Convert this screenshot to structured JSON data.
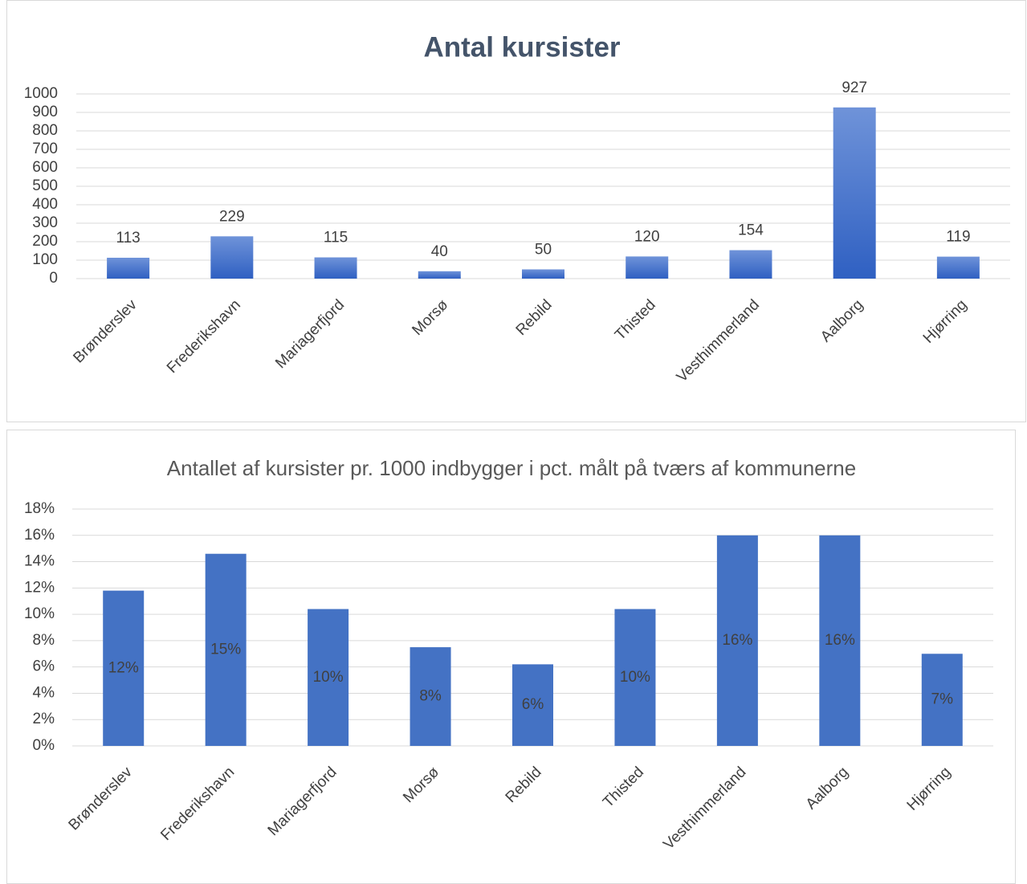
{
  "chart_data": [
    {
      "type": "bar",
      "title": "Antal kursister",
      "categories": [
        "Brønderslev",
        "Frederikshavn",
        "Mariagerfjord",
        "Morsø",
        "Rebild",
        "Thisted",
        "Vesthimmerland",
        "Aalborg",
        "Hjørring"
      ],
      "values": [
        113,
        229,
        115,
        40,
        50,
        120,
        154,
        927,
        119
      ],
      "gradient": [
        "#6f93d9",
        "#2f60c2"
      ],
      "ylim": [
        0,
        1000
      ],
      "yticks": [
        0,
        100,
        200,
        300,
        400,
        500,
        600,
        700,
        800,
        900,
        1000
      ],
      "grid": true
    },
    {
      "type": "bar",
      "title": "Antallet af kursister pr. 1000 indbygger i pct. målt på tværs af kommunerne",
      "categories": [
        "Brønderslev",
        "Frederikshavn",
        "Mariagerfjord",
        "Morsø",
        "Rebild",
        "Thisted",
        "Vesthimmerland",
        "Aalborg",
        "Hjørring"
      ],
      "values": [
        11.8,
        14.6,
        10.4,
        7.5,
        6.2,
        10.4,
        16.0,
        16.0,
        7.0
      ],
      "value_labels": [
        "12%",
        "15%",
        "10%",
        "8%",
        "6%",
        "10%",
        "16%",
        "16%",
        "7%"
      ],
      "color": "#4472c4",
      "ylim": [
        0,
        18
      ],
      "yticks": [
        {
          "value": 0,
          "label": "0%"
        },
        {
          "value": 2,
          "label": "2%"
        },
        {
          "value": 4,
          "label": "4%"
        },
        {
          "value": 6,
          "label": "6%"
        },
        {
          "value": 8,
          "label": "8%"
        },
        {
          "value": 10,
          "label": "10%"
        },
        {
          "value": 12,
          "label": "12%"
        },
        {
          "value": 14,
          "label": "14%"
        },
        {
          "value": 16,
          "label": "16%"
        },
        {
          "value": 18,
          "label": "18%"
        }
      ],
      "grid": true
    }
  ]
}
